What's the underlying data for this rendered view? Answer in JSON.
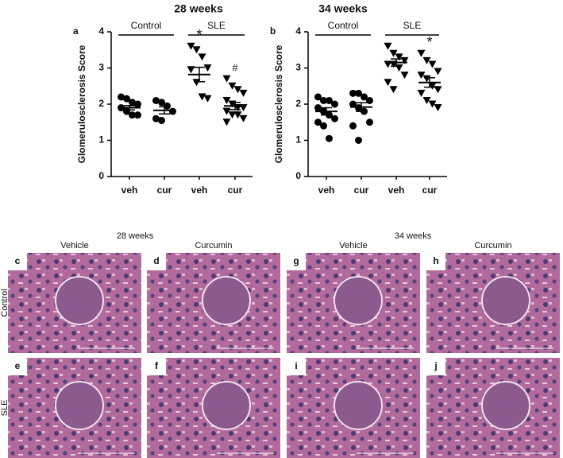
{
  "chart_data": [
    {
      "type": "dot",
      "title": "28 weeks",
      "panel": "a",
      "y_label": "Glomerulosclerosis Score",
      "categories": [
        "veh",
        "cur",
        "veh",
        "cur"
      ],
      "groups": [
        "Control",
        "SLE"
      ],
      "markers": [
        "circle",
        "circle",
        "triangle",
        "triangle"
      ],
      "values": [
        [
          2.2,
          2.15,
          2.05,
          2.0,
          1.9,
          1.8,
          1.7,
          1.7
        ],
        [
          2.1,
          2.05,
          1.95,
          1.8,
          1.6,
          1.55
        ],
        [
          3.6,
          3.5,
          3.3,
          3.0,
          2.95,
          2.6,
          2.2,
          2.15
        ],
        [
          2.7,
          2.5,
          2.4,
          2.3,
          2.1,
          2.0,
          1.9,
          1.9,
          1.8,
          1.7,
          1.7,
          1.6,
          1.5
        ]
      ],
      "means": [
        1.9,
        1.83,
        2.82,
        1.95
      ],
      "sems": [
        0.06,
        0.1,
        0.2,
        0.1
      ],
      "annotations": [
        null,
        null,
        "*",
        "#"
      ],
      "annotation_color": "#e8262b",
      "ylim": [
        0,
        4
      ],
      "yticks": [
        0,
        1,
        2,
        3,
        4
      ],
      "color": "#000000"
    },
    {
      "type": "dot",
      "title": "34 weeks",
      "panel": "b",
      "y_label": "Glomerulosclerosis Score",
      "categories": [
        "veh",
        "cur",
        "veh",
        "cur"
      ],
      "groups": [
        "Control",
        "SLE"
      ],
      "markers": [
        "circle",
        "circle",
        "triangle",
        "triangle"
      ],
      "values": [
        [
          2.2,
          2.1,
          2.1,
          2.0,
          1.9,
          1.8,
          1.7,
          1.6,
          1.5,
          1.4,
          1.05
        ],
        [
          2.3,
          2.3,
          2.2,
          2.1,
          2.0,
          1.9,
          1.8,
          1.5,
          1.4,
          1.0
        ],
        [
          3.6,
          3.4,
          3.3,
          3.2,
          3.1,
          3.1,
          3.0,
          2.8,
          2.6,
          2.4
        ],
        [
          3.4,
          3.2,
          3.1,
          2.9,
          2.8,
          2.7,
          2.5,
          2.4,
          2.3,
          2.1,
          2.0,
          1.9
        ]
      ],
      "means": [
        1.8,
        1.92,
        3.15,
        2.6
      ],
      "sems": [
        0.1,
        0.12,
        0.1,
        0.13
      ],
      "annotations": [
        null,
        null,
        null,
        "*"
      ],
      "annotation_color": "#e8262b",
      "ylim": [
        0,
        4
      ],
      "yticks": [
        0,
        1,
        2,
        3,
        4
      ],
      "color": "#000000"
    }
  ],
  "micrographs": {
    "timepoints": [
      "28 weeks",
      "34 weeks"
    ],
    "columns": [
      "Vehicle",
      "Curcumin",
      "Vehicle",
      "Curcumin"
    ],
    "rows": [
      "Control",
      "SLE"
    ],
    "panels": [
      [
        "c",
        "d",
        "g",
        "h"
      ],
      [
        "e",
        "f",
        "i",
        "j"
      ]
    ]
  }
}
